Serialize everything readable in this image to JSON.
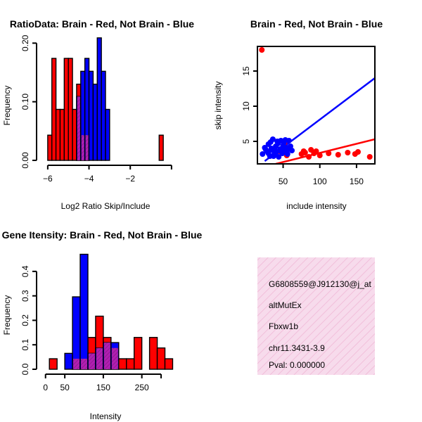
{
  "chart_data": [
    {
      "id": "ratio",
      "type": "bar",
      "title": "RatioData: Brain - Red, Not Brain - Blue",
      "xlabel": "Log2 Ratio Skip/Include",
      "ylabel": "Frequency",
      "xlim": [
        -6.2,
        -0.2
      ],
      "ylim": [
        0,
        0.21
      ],
      "xticks": [
        -6,
        -4,
        -2
      ],
      "xtick_labels": [
        "−6",
        "−4",
        "−2"
      ],
      "yticks": [
        0.0,
        0.1,
        0.2
      ],
      "ytick_labels": [
        "0.00",
        "0.10",
        "0.20"
      ],
      "series": [
        {
          "name": "Brain",
          "color": "#ff0000",
          "bins": [
            [
              -6.0,
              -5.8,
              0.043
            ],
            [
              -5.8,
              -5.6,
              0.174
            ],
            [
              -5.6,
              -5.4,
              0.087
            ],
            [
              -5.4,
              -5.2,
              0.087
            ],
            [
              -5.2,
              -5.0,
              0.174
            ],
            [
              -5.0,
              -4.8,
              0.174
            ],
            [
              -4.8,
              -4.6,
              0.087
            ],
            [
              -4.6,
              -4.4,
              0.13
            ],
            [
              -4.4,
              -4.2,
              0.043
            ],
            [
              -4.2,
              -4.0,
              0.043
            ],
            [
              -0.6,
              -0.4,
              0.043
            ]
          ]
        },
        {
          "name": "Not Brain",
          "color": "#0000ff",
          "bins": [
            [
              -4.6,
              -4.4,
              0.109
            ],
            [
              -4.4,
              -4.2,
              0.152
            ],
            [
              -4.2,
              -4.0,
              0.174
            ],
            [
              -4.0,
              -3.8,
              0.152
            ],
            [
              -3.8,
              -3.6,
              0.13
            ],
            [
              -3.6,
              -3.4,
              0.209
            ],
            [
              -3.4,
              -3.2,
              0.152
            ],
            [
              -3.2,
              -3.0,
              0.087
            ]
          ]
        }
      ]
    },
    {
      "id": "scatter",
      "type": "scatter",
      "title": "Brain - Red, Not Brain - Blue",
      "xlabel": "include intensity",
      "ylabel": "skip intensity",
      "xlim": [
        15,
        175
      ],
      "ylim": [
        1.8,
        18.5
      ],
      "xticks": [
        50,
        100,
        150
      ],
      "yticks": [
        5,
        10,
        15
      ],
      "series": [
        {
          "name": "Brain",
          "color": "#ff0000",
          "points": [
            [
              21,
              18
            ],
            [
              55,
              3
            ],
            [
              75,
              3.2
            ],
            [
              78,
              3.6
            ],
            [
              80,
              3.4
            ],
            [
              85,
              2.8
            ],
            [
              88,
              3.8
            ],
            [
              92,
              3.3
            ],
            [
              95,
              3.6
            ],
            [
              100,
              3
            ],
            [
              112,
              3.3
            ],
            [
              125,
              3.1
            ],
            [
              138,
              3.4
            ],
            [
              148,
              3.2
            ],
            [
              152,
              3.5
            ],
            [
              168,
              2.8
            ],
            [
              52,
              4.8
            ],
            [
              45,
              3.6
            ]
          ],
          "fit": [
            [
              40,
              1.8
            ],
            [
              175,
              5.3
            ]
          ]
        },
        {
          "name": "Not Brain",
          "color": "#0000ff",
          "points": [
            [
              22,
              3.2
            ],
            [
              25,
              4.1
            ],
            [
              28,
              3.6
            ],
            [
              30,
              4.6
            ],
            [
              32,
              2.9
            ],
            [
              33,
              4.9
            ],
            [
              35,
              3.8
            ],
            [
              36,
              5.3
            ],
            [
              38,
              3.2
            ],
            [
              40,
              4.3
            ],
            [
              41,
              3.5
            ],
            [
              43,
              4.7
            ],
            [
              44,
              2.8
            ],
            [
              46,
              3.9
            ],
            [
              47,
              5.1
            ],
            [
              49,
              3.3
            ],
            [
              50,
              4.4
            ],
            [
              52,
              3.7
            ],
            [
              53,
              5.2
            ],
            [
              55,
              4.1
            ],
            [
              56,
              3.2
            ],
            [
              58,
              5.1
            ],
            [
              60,
              4.3
            ],
            [
              62,
              3.7
            ],
            [
              30,
              3.3
            ],
            [
              34,
              4
            ],
            [
              39,
              3.7
            ],
            [
              42,
              5
            ],
            [
              48,
              3.5
            ],
            [
              51,
              4.8
            ],
            [
              57,
              3.9
            ],
            [
              37,
              2.9
            ],
            [
              26,
              3.9
            ]
          ],
          "fit": [
            [
              25,
              2.2
            ],
            [
              175,
              14
            ]
          ]
        }
      ]
    },
    {
      "id": "intensity",
      "type": "bar",
      "title": "Gene Itensity: Brain - Red, Not Brain - Blue",
      "xlabel": "Intensity",
      "ylabel": "Frequency",
      "xlim": [
        -5,
        320
      ],
      "ylim": [
        0,
        0.46
      ],
      "xticks": [
        0,
        50,
        150,
        250
      ],
      "yticks": [
        0.0,
        0.1,
        0.2,
        0.3,
        0.4
      ],
      "ytick_labels": [
        "0.0",
        "0.1",
        "0.2",
        "0.3",
        "0.4"
      ],
      "series": [
        {
          "name": "Brain",
          "color": "#ff0000",
          "bins": [
            [
              10,
              30,
              0.043
            ],
            [
              70,
              90,
              0.043
            ],
            [
              90,
              110,
              0.043
            ],
            [
              110,
              130,
              0.13
            ],
            [
              130,
              150,
              0.217
            ],
            [
              150,
              170,
              0.13
            ],
            [
              170,
              190,
              0.087
            ],
            [
              190,
              210,
              0.043
            ],
            [
              210,
              230,
              0.043
            ],
            [
              230,
              250,
              0.13
            ],
            [
              270,
              290,
              0.13
            ],
            [
              290,
              310,
              0.087
            ],
            [
              310,
              330,
              0.043
            ]
          ]
        },
        {
          "name": "Not Brain",
          "color": "#0000ff",
          "bins": [
            [
              50,
              70,
              0.065
            ],
            [
              70,
              90,
              0.296
            ],
            [
              90,
              110,
              0.47
            ],
            [
              110,
              130,
              0.065
            ],
            [
              130,
              150,
              0.087
            ],
            [
              150,
              170,
              0.109
            ],
            [
              170,
              190,
              0.109
            ]
          ]
        }
      ]
    }
  ],
  "info_panel": {
    "lines": [
      "G6808559@J912130@j_at",
      "altMutEx",
      "Fbxw1b",
      "chr11.3431-3.9"
    ],
    "pval": "Pval: 0.000000"
  },
  "colors": {
    "brain": "#ff0000",
    "not_brain": "#0000ff",
    "overlap": "#a020a0",
    "panel_bg": "#f6d8ea",
    "pval_text": "#c00000"
  }
}
